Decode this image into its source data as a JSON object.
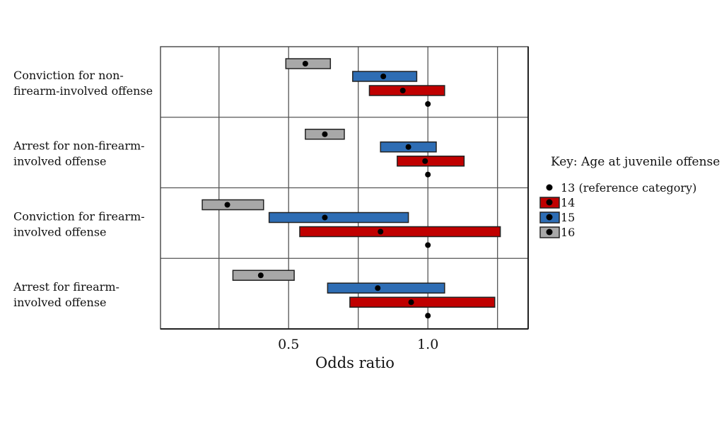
{
  "chart_data": {
    "type": "bar",
    "subtype": "horizontal interval (odds ratio with confidence range)",
    "xlabel": "Odds ratio",
    "ylabel": "",
    "xlim": [
      0.04,
      1.36
    ],
    "x_ticks": [
      0.5,
      1.0
    ],
    "x_tick_labels": [
      "0.5",
      "1.0"
    ],
    "x_gridlines": [
      0.25,
      0.5,
      0.75,
      1.0,
      1.25
    ],
    "grid": true,
    "legend_position": "right",
    "legend": {
      "title": "Key: Age at juvenile offense",
      "entries": [
        {
          "label": "13 (reference category)",
          "kind": "point"
        },
        {
          "label": "14",
          "color": "#c00000"
        },
        {
          "label": "15",
          "color": "#2e6db4"
        },
        {
          "label": "16",
          "color": "#a8a8a8"
        }
      ]
    },
    "series_colors": {
      "14": "#c00000",
      "15": "#2e6db4",
      "16": "#a8a8a8"
    },
    "reference_value": 1.0,
    "categories": [
      {
        "label_lines": [
          "Conviction for non-",
          "firearm-involved offense"
        ],
        "bars": {
          "16": {
            "low": 0.49,
            "high": 0.65,
            "point": 0.56
          },
          "15": {
            "low": 0.73,
            "high": 0.96,
            "point": 0.84
          },
          "14": {
            "low": 0.79,
            "high": 1.06,
            "point": 0.91
          }
        }
      },
      {
        "label_lines": [
          "Arrest for non-firearm-",
          "involved offense"
        ],
        "bars": {
          "16": {
            "low": 0.56,
            "high": 0.7,
            "point": 0.63
          },
          "15": {
            "low": 0.83,
            "high": 1.03,
            "point": 0.93
          },
          "14": {
            "low": 0.89,
            "high": 1.13,
            "point": 0.99
          }
        }
      },
      {
        "label_lines": [
          "Conviction for firearm-",
          "involved offense"
        ],
        "bars": {
          "16": {
            "low": 0.19,
            "high": 0.41,
            "point": 0.28
          },
          "15": {
            "low": 0.43,
            "high": 0.93,
            "point": 0.63
          },
          "14": {
            "low": 0.54,
            "high": 1.26,
            "point": 0.83
          }
        }
      },
      {
        "label_lines": [
          "Arrest for firearm-",
          "involved offense"
        ],
        "bars": {
          "16": {
            "low": 0.3,
            "high": 0.52,
            "point": 0.4
          },
          "15": {
            "low": 0.64,
            "high": 1.06,
            "point": 0.82
          },
          "14": {
            "low": 0.72,
            "high": 1.24,
            "point": 0.94
          }
        }
      }
    ]
  }
}
